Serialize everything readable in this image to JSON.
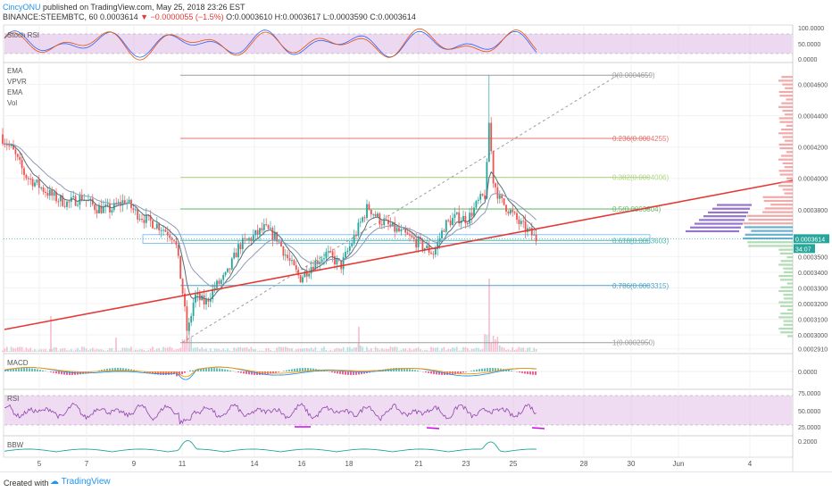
{
  "header": {
    "author": "CincyONU",
    "published": "published on TradingView.com, May 25, 2018 23:26 EST",
    "symbol": "BINANCE:STEEMBTC, 60",
    "last": "0.0003614",
    "change": "−0.0000055 (−1.5%)",
    "ohlc": "O:0.0003610 H:0.0003617 L:0.0003590 C:0.0003614"
  },
  "footer": {
    "created_with": "Created with",
    "brand": "TradingView"
  },
  "panes": {
    "stoch_label": "Stoch RSI",
    "macd_label": "MACD",
    "rsi_label": "RSI",
    "bbw_label": "BBW",
    "main_legend": [
      "EMA",
      "VPVR",
      "EMA",
      "Vol"
    ]
  },
  "colors": {
    "up": "#26a69a",
    "down": "#ef5350",
    "trendline": "#e53935",
    "fib_0": "#9e9e9e",
    "fib_236": "#e57373",
    "fib_382": "#aed581",
    "fib_5": "#66bb6a",
    "fib_618": "#4db6ac",
    "fib_786": "#4fa3c7",
    "fib_1": "#9e9e9e",
    "rsi_line": "#8e44ad",
    "bbw_line": "#26a69a",
    "stoch_fill": "#e1bee7"
  },
  "chart_data": {
    "type": "candlestick",
    "x_ticks": [
      "5",
      "7",
      "9",
      "11",
      "14",
      "16",
      "18",
      "21",
      "23",
      "25",
      "28",
      "30",
      "Jun",
      "4"
    ],
    "price_ticks": [
      "0.0004600",
      "0.0004400",
      "0.0004200",
      "0.0004000",
      "0.0003800",
      "0.0003500",
      "0.0003400",
      "0.0003300",
      "0.0003200",
      "0.0003100",
      "0.0003000",
      "0.0002910"
    ],
    "price_range": [
      0.000288,
      0.000474
    ],
    "last_price_label": "0.0003614",
    "countdown_label": "34:07",
    "fib_levels": [
      {
        "label": "0(0.0004659)",
        "value": 0.0004659
      },
      {
        "label": "0.236(0.0004255)",
        "value": 0.0004255
      },
      {
        "label": "0.382(0.0004006)",
        "value": 0.0004006
      },
      {
        "label": "0.5(0.0003804)",
        "value": 0.0003804
      },
      {
        "label": "0.618(0.0003603)",
        "value": 0.0003603
      },
      {
        "label": "0.786(0.0003315)",
        "value": 0.0003315
      },
      {
        "label": "1(0.0002950)",
        "value": 0.000295
      }
    ],
    "anchors": [
      [
        0,
        0.000428
      ],
      [
        14,
        0.000418
      ],
      [
        28,
        0.000402
      ],
      [
        44,
        0.000395
      ],
      [
        60,
        0.000388
      ],
      [
        76,
        0.000384
      ],
      [
        92,
        0.000388
      ],
      [
        108,
        0.000381
      ],
      [
        124,
        0.00038
      ],
      [
        140,
        0.000386
      ],
      [
        152,
        0.000378
      ],
      [
        166,
        0.000373
      ],
      [
        180,
        0.000369
      ],
      [
        196,
        0.000362
      ],
      [
        204,
        0.00033
      ],
      [
        210,
        0.0003
      ],
      [
        218,
        0.000325
      ],
      [
        230,
        0.00032
      ],
      [
        240,
        0.00033
      ],
      [
        254,
        0.000338
      ],
      [
        268,
        0.000357
      ],
      [
        282,
        0.000362
      ],
      [
        296,
        0.000368
      ],
      [
        310,
        0.000362
      ],
      [
        322,
        0.000349
      ],
      [
        336,
        0.000336
      ],
      [
        350,
        0.000345
      ],
      [
        366,
        0.000352
      ],
      [
        382,
        0.000344
      ],
      [
        398,
        0.000364
      ],
      [
        412,
        0.000382
      ],
      [
        426,
        0.000373
      ],
      [
        440,
        0.000368
      ],
      [
        456,
        0.000363
      ],
      [
        470,
        0.000358
      ],
      [
        486,
        0.000352
      ],
      [
        498,
        0.00037
      ],
      [
        510,
        0.000375
      ],
      [
        524,
        0.000374
      ],
      [
        536,
        0.000385
      ],
      [
        544,
        0.00039
      ],
      [
        548,
        0.000438
      ],
      [
        552,
        0.0004
      ],
      [
        560,
        0.000386
      ],
      [
        570,
        0.00038
      ],
      [
        582,
        0.000371
      ],
      [
        594,
        0.000365
      ],
      [
        601,
        0.000361
      ]
    ],
    "stoch_ticks": [
      "100.0000",
      "50.0000",
      "0.0000"
    ],
    "macd_ticks": [
      "0.0000"
    ],
    "rsi_ticks": [
      "75.0000",
      "50.0000",
      "25.0000"
    ],
    "bbw_ticks": [
      "0.2000"
    ]
  }
}
